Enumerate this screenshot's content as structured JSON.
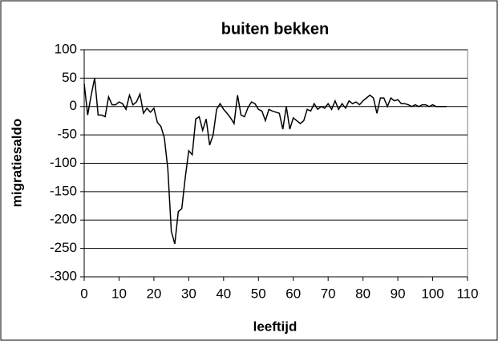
{
  "chart_data": {
    "type": "line",
    "title": "buiten bekken",
    "x_label": "leeftijd",
    "y_label": "migratiesaldo",
    "x": [
      0,
      1,
      2,
      3,
      4,
      5,
      6,
      7,
      8,
      9,
      10,
      11,
      12,
      13,
      14,
      15,
      16,
      17,
      18,
      19,
      20,
      21,
      22,
      23,
      24,
      25,
      26,
      27,
      28,
      29,
      30,
      31,
      32,
      33,
      34,
      35,
      36,
      37,
      38,
      39,
      40,
      41,
      42,
      43,
      44,
      45,
      46,
      47,
      48,
      49,
      50,
      51,
      52,
      53,
      54,
      55,
      56,
      57,
      58,
      59,
      60,
      61,
      62,
      63,
      64,
      65,
      66,
      67,
      68,
      69,
      70,
      71,
      72,
      73,
      74,
      75,
      76,
      77,
      78,
      79,
      80,
      81,
      82,
      83,
      84,
      85,
      86,
      87,
      88,
      89,
      90,
      91,
      92,
      93,
      94,
      95,
      96,
      97,
      98,
      99,
      100,
      101,
      102,
      103,
      104
    ],
    "series": [
      {
        "color": "#000000",
        "values": [
          40,
          -15,
          20,
          50,
          -15,
          -15,
          -18,
          17,
          3,
          3,
          8,
          5,
          -5,
          20,
          3,
          8,
          22,
          -12,
          -3,
          -10,
          -3,
          -28,
          -35,
          -55,
          -110,
          -220,
          -242,
          -185,
          -180,
          -125,
          -78,
          -85,
          -22,
          -18,
          -42,
          -22,
          -68,
          -50,
          -5,
          5,
          -5,
          -12,
          -20,
          -30,
          20,
          -15,
          -18,
          -2,
          8,
          5,
          -5,
          -8,
          -25,
          -5,
          -8,
          -10,
          -12,
          -40,
          0,
          -40,
          -20,
          -25,
          -30,
          -25,
          -5,
          -8,
          5,
          -5,
          0,
          -3,
          5,
          -5,
          10,
          -5,
          5,
          -3,
          10,
          5,
          8,
          3,
          10,
          15,
          20,
          15,
          -12,
          15,
          15,
          0,
          15,
          10,
          12,
          5,
          5,
          3,
          0,
          3,
          0,
          3,
          3,
          0,
          3,
          0,
          0,
          0,
          0
        ]
      }
    ],
    "xlim": [
      0,
      110
    ],
    "xticks": [
      0,
      10,
      20,
      30,
      40,
      50,
      60,
      70,
      80,
      90,
      100,
      110
    ],
    "ylim": [
      -300,
      100
    ],
    "yticks": [
      -300,
      -250,
      -200,
      -150,
      -100,
      -50,
      0,
      50,
      100
    ],
    "grid": true
  }
}
